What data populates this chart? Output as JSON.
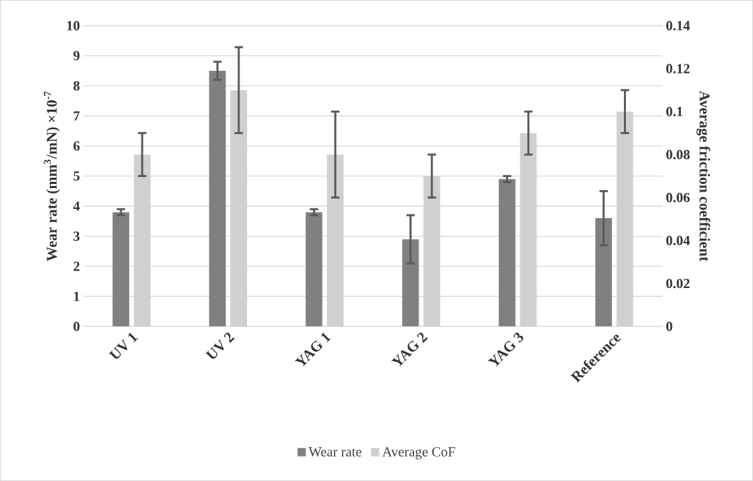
{
  "chart_data": {
    "type": "bar",
    "categories": [
      "UV 1",
      "UV 2",
      "YAG 1",
      "YAG 2",
      "YAG 3",
      "Reference"
    ],
    "series": [
      {
        "name": "Wear rate",
        "color": "#808080",
        "values": [
          3.8,
          8.5,
          3.8,
          2.9,
          4.9,
          3.6
        ],
        "errors": [
          0.1,
          0.3,
          0.1,
          0.8,
          0.1,
          0.9
        ]
      },
      {
        "name": "Average CoF",
        "color": "#d0d0d0",
        "axis": "y2",
        "values": [
          0.08,
          0.11,
          0.08,
          0.07,
          0.09,
          0.1
        ],
        "errors": [
          0.01,
          0.02,
          0.02,
          0.01,
          0.01,
          0.01
        ]
      }
    ],
    "ylabel": "Wear rate (mm$^{3}$/mN) ×10$^{-7}$",
    "y2label": "Average friction coefficient",
    "ylim": [
      0,
      10
    ],
    "yticks": [
      0,
      1,
      2,
      3,
      4,
      5,
      6,
      7,
      8,
      9,
      10
    ],
    "y2lim": [
      0,
      0.14
    ],
    "y2ticks": [
      0,
      0.02,
      0.04,
      0.06,
      0.08,
      0.1,
      0.12,
      0.14
    ],
    "grid": "y",
    "legend": "bottom"
  }
}
